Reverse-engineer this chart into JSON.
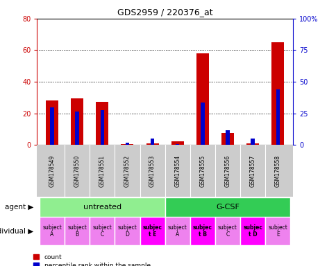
{
  "title": "GDS2959 / 220376_at",
  "samples": [
    "GSM178549",
    "GSM178550",
    "GSM178551",
    "GSM178552",
    "GSM178553",
    "GSM178554",
    "GSM178555",
    "GSM178556",
    "GSM178557",
    "GSM178558"
  ],
  "count": [
    28,
    29.5,
    27.5,
    0.5,
    1,
    2.5,
    58,
    7.5,
    1,
    65
  ],
  "percentile": [
    30,
    26.25,
    27.5,
    1.875,
    5,
    0.625,
    33.75,
    11.875,
    5,
    43.75
  ],
  "ylim_left": [
    0,
    80
  ],
  "ylim_right": [
    0,
    100
  ],
  "yticks_left": [
    0,
    20,
    40,
    60,
    80
  ],
  "yticks_right": [
    0,
    25,
    50,
    75,
    100
  ],
  "ytick_labels_right": [
    "0",
    "25",
    "50",
    "75",
    "100%"
  ],
  "agent_groups": [
    {
      "label": "untreated",
      "start": 0,
      "end": 5,
      "color": "#90ee90"
    },
    {
      "label": "G-CSF",
      "start": 5,
      "end": 10,
      "color": "#33cc55"
    }
  ],
  "individual_labels": [
    "subject\nA",
    "subject\nB",
    "subject\nC",
    "subject\nD",
    "subjec\nt E",
    "subject\nA",
    "subjec\nt B",
    "subject\nC",
    "subjec\nt D",
    "subject\nE"
  ],
  "individual_bold": [
    false,
    false,
    false,
    false,
    true,
    false,
    true,
    false,
    true,
    false
  ],
  "individual_colors": [
    "#ee82ee",
    "#ee82ee",
    "#ee82ee",
    "#ee82ee",
    "#ff00ff",
    "#ee82ee",
    "#ff00ff",
    "#ee82ee",
    "#ff00ff",
    "#ee82ee"
  ],
  "bar_color_red": "#cc0000",
  "bar_color_blue": "#0000cc",
  "bg_color": "#ffffff",
  "left_tick_color": "#cc0000",
  "right_tick_color": "#0000cc",
  "bar_width": 0.5,
  "blue_bar_width": 0.15
}
